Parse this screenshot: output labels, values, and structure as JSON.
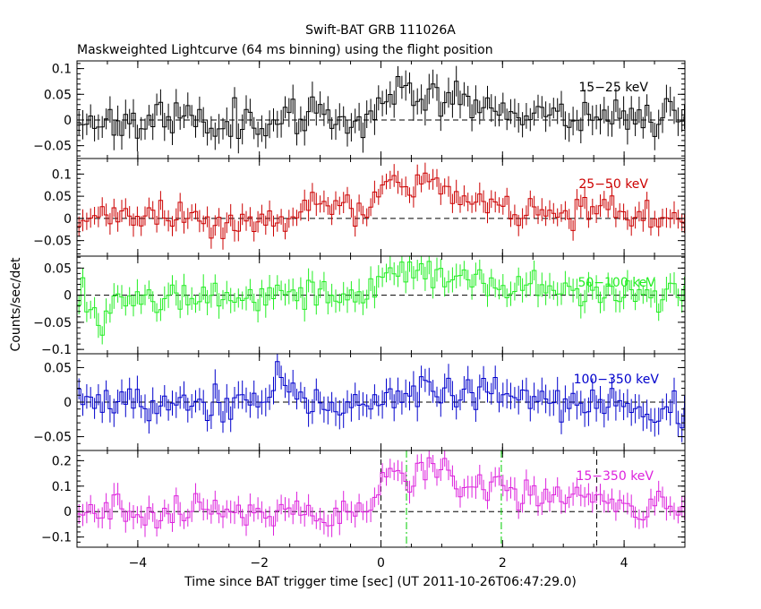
{
  "chart_data": {
    "type": "line",
    "title": "Swift-BAT GRB 111026A",
    "subtitle": "Maskweighted Lightcurve (64 ms binning) using the flight position",
    "xlabel": "Time since BAT trigger time [sec] (UT 2011-10-26T06:47:29.0)",
    "ylabel": "Counts/sec/det",
    "xlim": [
      -5,
      5
    ],
    "x_ticks": [
      -4,
      -2,
      0,
      2,
      4
    ],
    "x_tick_labels": [
      "−4",
      "−2",
      "0",
      "2",
      "4"
    ],
    "bin_width_sec": 0.064,
    "vertical_markers": [
      {
        "x": 0.0,
        "style": "dashed",
        "color": "#000000"
      },
      {
        "x": 0.42,
        "style": "dashdot",
        "color": "#00cc00"
      },
      {
        "x": 1.98,
        "style": "dashdot",
        "color": "#00cc00"
      },
      {
        "x": 3.55,
        "style": "dashed",
        "color": "#000000"
      }
    ],
    "panels": [
      {
        "band": "15−25 keV",
        "color": "#000000",
        "ylim": [
          -0.075,
          0.115
        ],
        "y_ticks": [
          -0.05,
          0,
          0.05,
          0.1
        ],
        "y_tick_labels": [
          "−0.05",
          "0",
          "0.05",
          "0.1"
        ],
        "x": [
          -5,
          -4,
          -3,
          -2,
          -1,
          -0.2,
          0,
          0.3,
          0.8,
          1.2,
          2,
          3,
          4,
          5
        ],
        "y": [
          0.0,
          0.0,
          0.0,
          0.0,
          0.0,
          0.005,
          0.045,
          0.055,
          0.06,
          0.04,
          0.02,
          0.01,
          0.01,
          0.01
        ],
        "noise": 0.025,
        "seed": 11
      },
      {
        "band": "25−50 keV",
        "color": "#cc0000",
        "ylim": [
          -0.085,
          0.135
        ],
        "y_ticks": [
          -0.05,
          0,
          0.05,
          0.1
        ],
        "y_tick_labels": [
          "−0.05",
          "0",
          "0.05",
          "0.1"
        ],
        "x": [
          -5,
          -3,
          -2.1,
          -1.3,
          -1.2,
          -0.2,
          0.05,
          0.2,
          0.5,
          0.8,
          0.95,
          1.3,
          2,
          3,
          4,
          5
        ],
        "y": [
          0.0,
          0.0,
          -0.01,
          0.005,
          0.03,
          0.01,
          0.08,
          0.08,
          0.05,
          0.09,
          0.08,
          0.04,
          0.03,
          0.015,
          0.01,
          0.0
        ],
        "noise": 0.022,
        "seed": 23
      },
      {
        "band": "50−100 keV",
        "color": "#22ee22",
        "ylim": [
          -0.108,
          0.072
        ],
        "y_ticks": [
          -0.1,
          -0.05,
          0,
          0.05
        ],
        "y_tick_labels": [
          "−0.1",
          "−0.05",
          "0",
          "0.05"
        ],
        "x": [
          -5,
          -4.8,
          -4.6,
          -4.4,
          -3,
          -1,
          -0.2,
          0.1,
          0.5,
          0.8,
          1.2,
          2,
          3,
          4,
          5
        ],
        "y": [
          0.0,
          -0.01,
          -0.06,
          0.0,
          0.0,
          0.0,
          0.01,
          0.04,
          0.03,
          0.04,
          0.03,
          0.02,
          0.01,
          0.0,
          0.0
        ],
        "noise": 0.02,
        "seed": 37
      },
      {
        "band": "100−350 keV",
        "color": "#0000cc",
        "ylim": [
          -0.07,
          0.07
        ],
        "y_ticks": [
          -0.05,
          0,
          0.05
        ],
        "y_tick_labels": [
          "−0.05",
          "0",
          "0.05"
        ],
        "x": [
          -5,
          -2,
          -1.7,
          -1.4,
          -0.8,
          0.5,
          0.9,
          1.3,
          3,
          4.3,
          4.5,
          5
        ],
        "y": [
          0.0,
          0.0,
          0.035,
          0.0,
          -0.015,
          0.015,
          0.02,
          0.01,
          0.005,
          -0.01,
          -0.03,
          0.0
        ],
        "noise": 0.018,
        "seed": 53
      },
      {
        "band": "15−350 keV",
        "color": "#dd22dd",
        "ylim": [
          -0.14,
          0.24
        ],
        "y_ticks": [
          -0.1,
          0,
          0.1,
          0.2
        ],
        "y_tick_labels": [
          "−0.1",
          "0",
          "0.1",
          "0.2"
        ],
        "x": [
          -5,
          -2,
          -1.5,
          -1,
          -0.2,
          0.0,
          0.2,
          0.5,
          0.8,
          1.0,
          1.3,
          1.8,
          2.5,
          3.5,
          4.5,
          5
        ],
        "y": [
          0.0,
          0.0,
          0.01,
          -0.02,
          0.02,
          0.14,
          0.15,
          0.12,
          0.19,
          0.18,
          0.1,
          0.1,
          0.07,
          0.04,
          0.0,
          0.03
        ],
        "noise": 0.04,
        "seed": 71
      }
    ]
  }
}
